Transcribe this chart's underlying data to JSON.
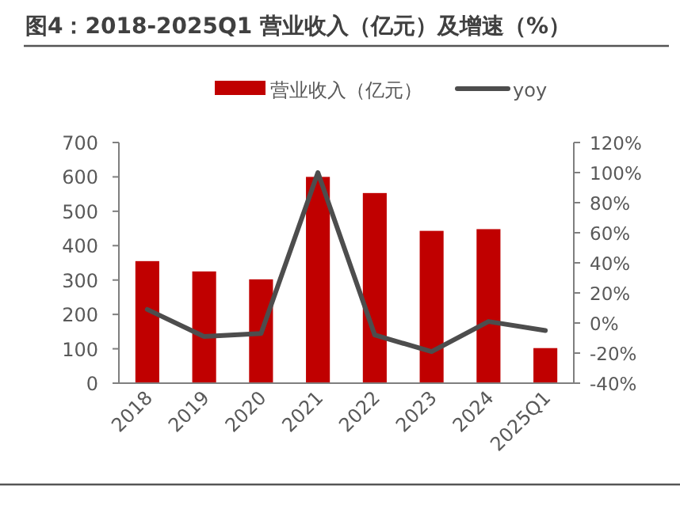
{
  "chart_data": {
    "type": "bar",
    "title": "图4：2018-2025Q1 营业收入（亿元）及增速（%）",
    "categories": [
      "2018",
      "2019",
      "2020",
      "2021",
      "2022",
      "2023",
      "2024",
      "2025Q1"
    ],
    "series": [
      {
        "name": "营业收入（亿元）",
        "color": "#c00000",
        "values": [
          355,
          325,
          302,
          600,
          553,
          443,
          448,
          102
        ]
      },
      {
        "name": "yoy",
        "type": "line",
        "axis": "y2",
        "color": "#4d4d4d",
        "values": [
          9,
          -9,
          -7,
          100,
          -8,
          -19,
          1,
          -5
        ]
      }
    ],
    "ylim": [
      0,
      700
    ],
    "yticks": [
      0,
      100,
      200,
      300,
      400,
      500,
      600,
      700
    ],
    "y2lim": [
      -40,
      120
    ],
    "y2ticks": [
      {
        "value": -40,
        "label": "-40%"
      },
      {
        "value": -20,
        "label": "-20%"
      },
      {
        "value": 0,
        "label": "0%"
      },
      {
        "value": 20,
        "label": "20%"
      },
      {
        "value": 40,
        "label": "40%"
      },
      {
        "value": 60,
        "label": "60%"
      },
      {
        "value": 80,
        "label": "80%"
      },
      {
        "value": 100,
        "label": "100%"
      },
      {
        "value": 120,
        "label": "120%"
      }
    ],
    "legend": "top",
    "grid": false,
    "marker": "none",
    "line_style": "solid"
  }
}
